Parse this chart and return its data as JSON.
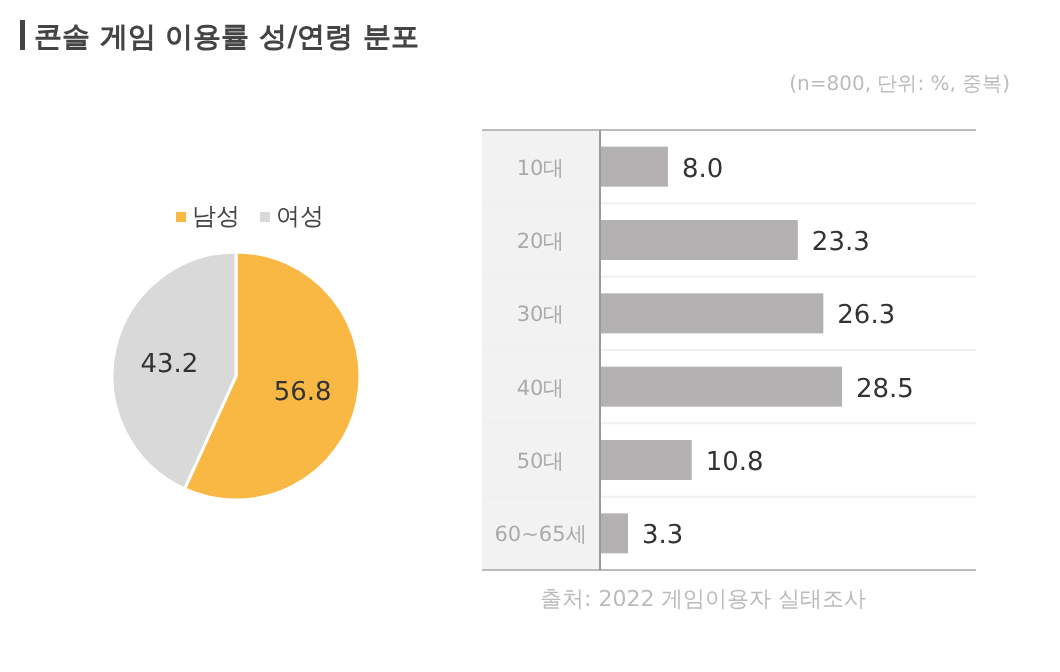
{
  "chart_data": [
    {
      "type": "pie",
      "title": "콘솔 게임 이용률 성/연령 분포",
      "categories": [
        "남성",
        "여성"
      ],
      "values": [
        56.8,
        43.2
      ],
      "colors": [
        "#f8b843",
        "#d9d9d9"
      ],
      "legend": "top",
      "data_labels": true
    },
    {
      "type": "bar",
      "orientation": "horizontal",
      "subtitle": "(n=800, 단위: %, 중복)",
      "categories": [
        "10대",
        "20대",
        "30대",
        "40대",
        "50대",
        "60~65세"
      ],
      "values": [
        8.0,
        23.3,
        26.3,
        28.5,
        10.8,
        3.3
      ],
      "value_labels": [
        "8.0",
        "23.3",
        "26.3",
        "28.5",
        "10.8",
        "3.3"
      ],
      "color": "#b3b1b1",
      "annotations": [
        "출처: 2022 게임이용자 실태조사"
      ]
    }
  ]
}
